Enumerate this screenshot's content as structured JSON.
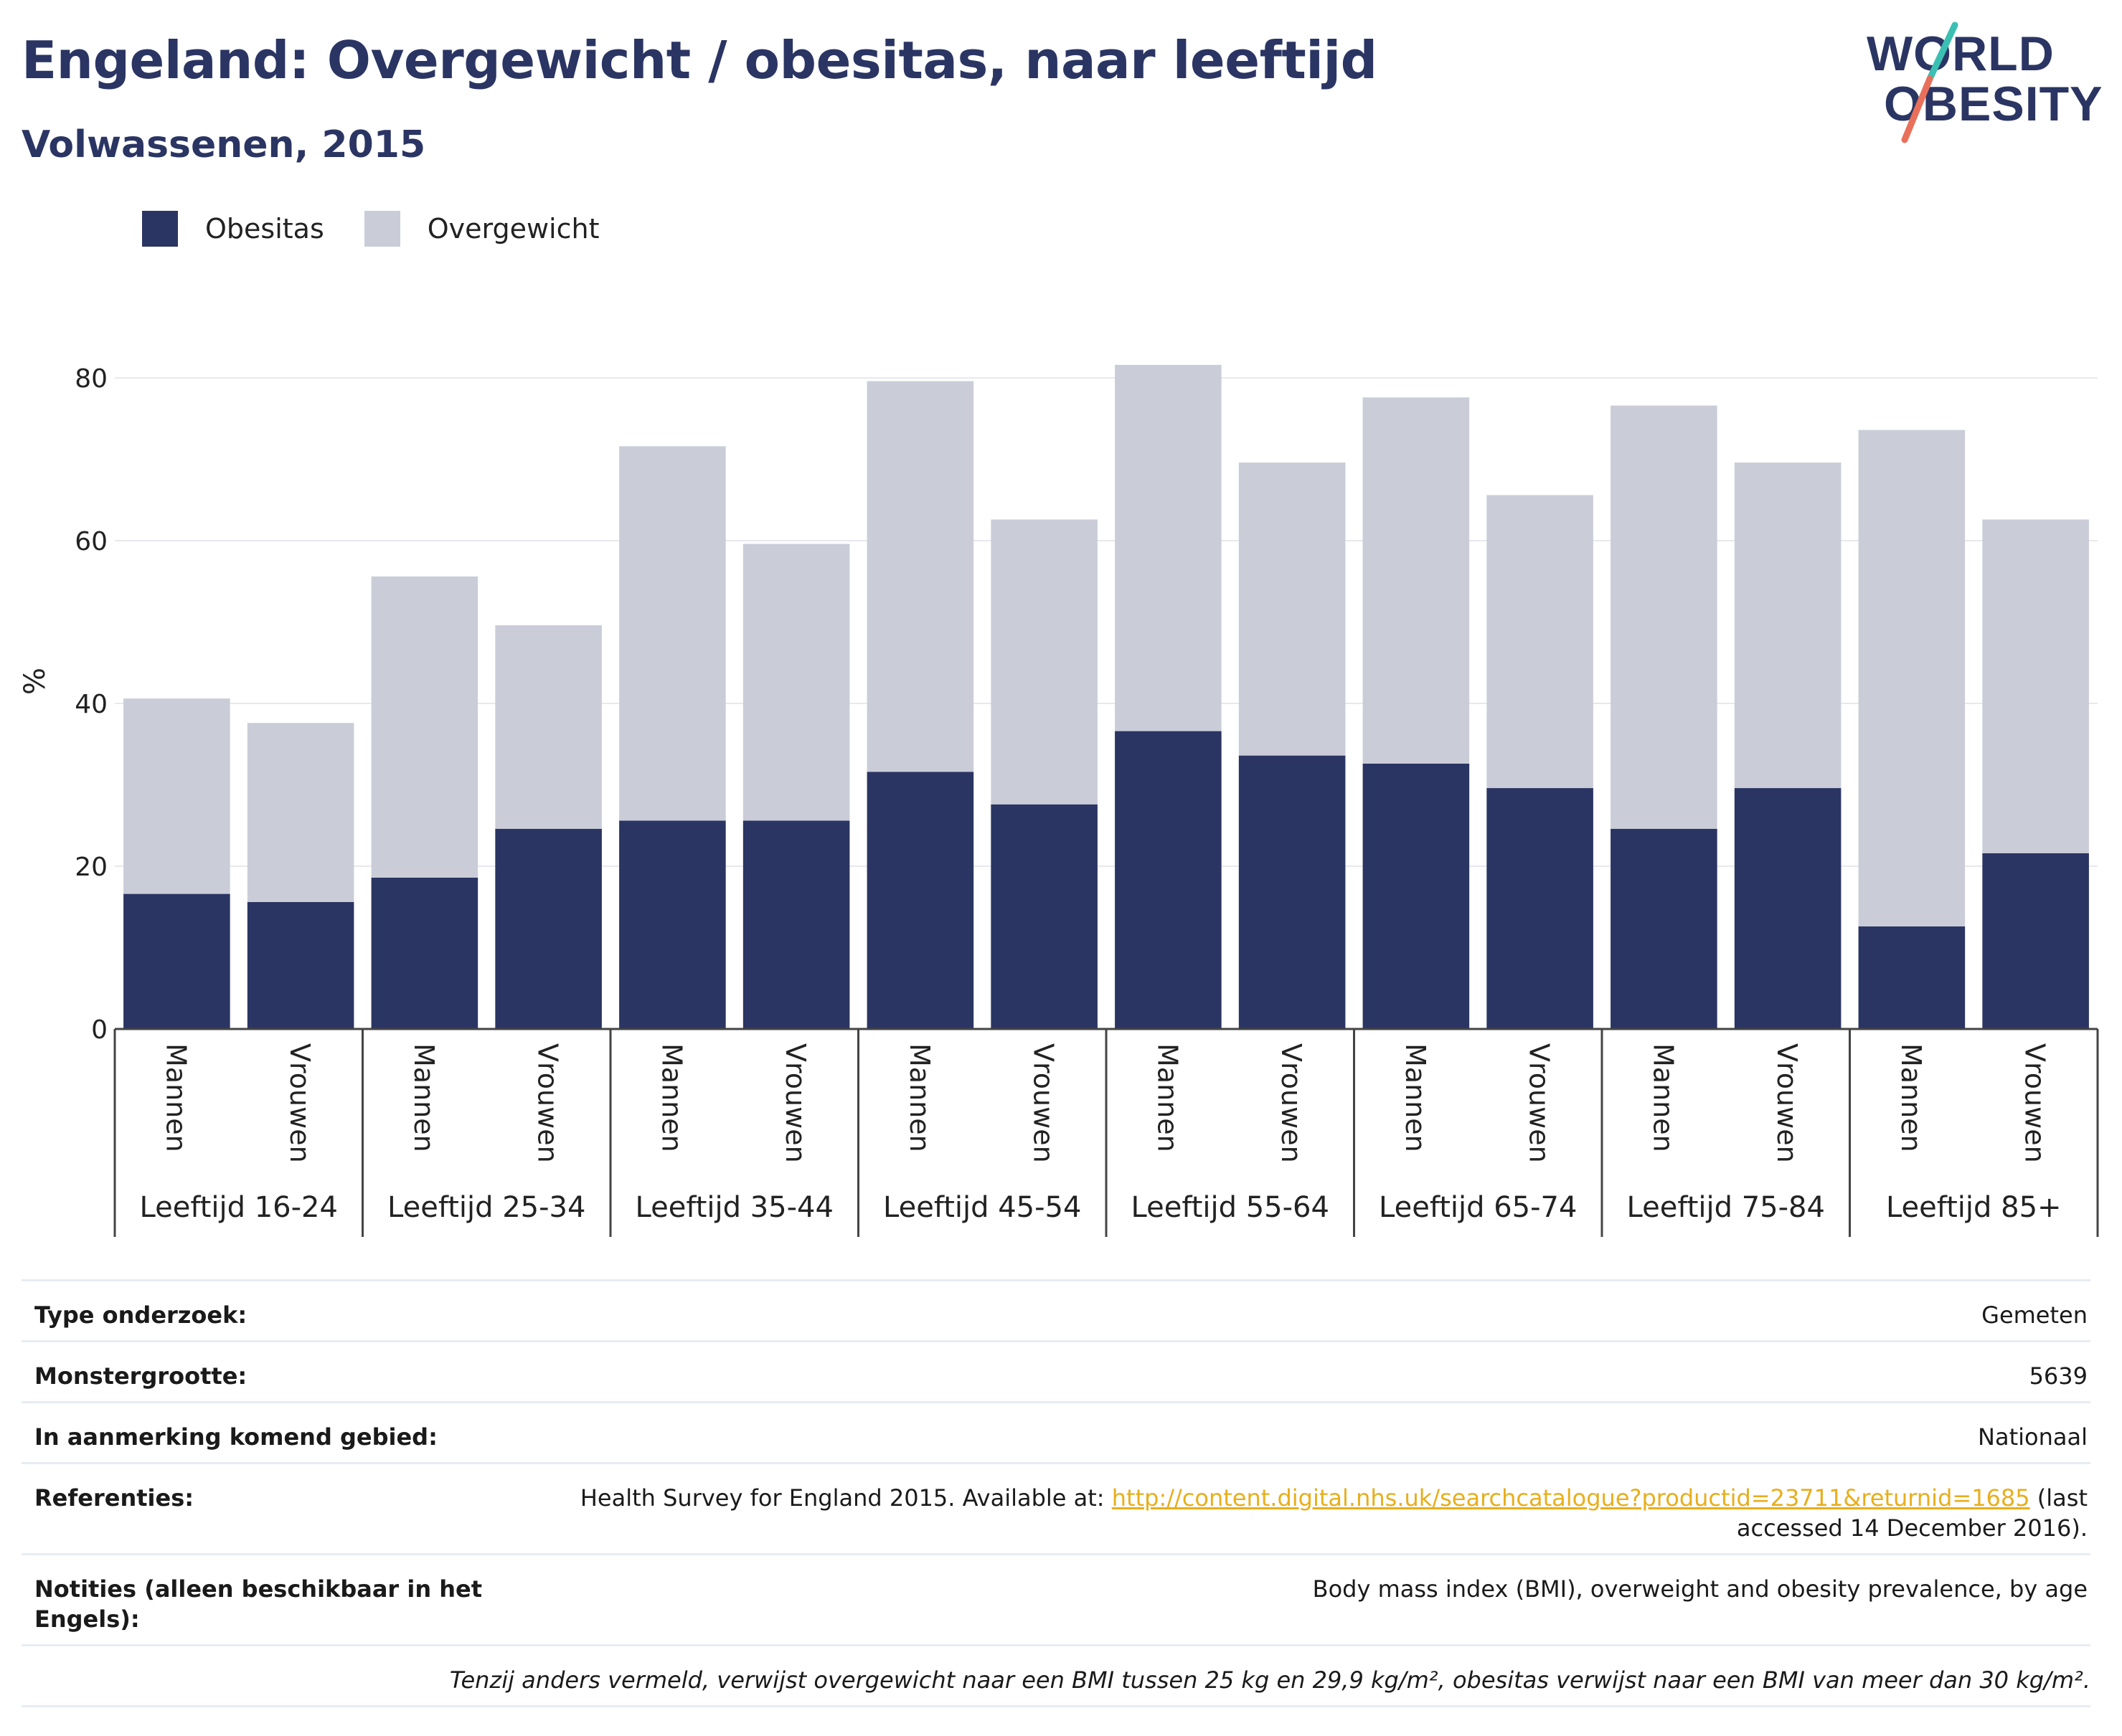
{
  "header": {
    "title": "Engeland: Overgewicht / obesitas, naar leeftijd",
    "subtitle": "Volwassenen, 2015"
  },
  "logo": {
    "line1": "WORLD",
    "line2": "OBESITY",
    "colors": {
      "text": "#2a3563",
      "stroke_top": "#3bbfb3",
      "stroke_bottom": "#e8705a"
    }
  },
  "legend": {
    "items": [
      {
        "label": "Obesitas",
        "color": "#2a3563"
      },
      {
        "label": "Overgewicht",
        "color": "#cacdd8"
      }
    ]
  },
  "chart_data": {
    "type": "bar",
    "stacked": true,
    "ylabel": "%",
    "ylim": [
      0,
      82
    ],
    "yticks": [
      0,
      20,
      40,
      60,
      80
    ],
    "grid": true,
    "legend_position": "top-left",
    "groups": [
      "Leeftijd 16-24",
      "Leeftijd 25-34",
      "Leeftijd 35-44",
      "Leeftijd 45-54",
      "Leeftijd 55-64",
      "Leeftijd 65-74",
      "Leeftijd 75-84",
      "Leeftijd 85+"
    ],
    "subcategories": [
      "Mannen",
      "Vrouwen"
    ],
    "series": [
      {
        "name": "Obesitas",
        "color": "#2a3563",
        "values": [
          16.6,
          15.6,
          18.6,
          24.6,
          25.6,
          25.6,
          31.6,
          27.6,
          36.6,
          33.6,
          32.6,
          29.6,
          24.6,
          29.6,
          12.6,
          21.6
        ]
      },
      {
        "name": "Overgewicht",
        "color": "#cacdd8",
        "values": [
          24,
          22,
          37,
          25,
          46,
          34,
          48,
          35,
          45,
          36,
          45,
          36,
          52,
          40,
          61,
          41
        ]
      }
    ]
  },
  "meta": {
    "rows": [
      {
        "label": "Type onderzoek:",
        "value": "Gemeten"
      },
      {
        "label": "Monstergrootte:",
        "value": "5639"
      },
      {
        "label": "In aanmerking komend gebied:",
        "value": "Nationaal"
      }
    ],
    "references": {
      "label": "Referenties:",
      "text_before": "Health Survey for England 2015. Available at: ",
      "link": "http://content.digital.nhs.uk/searchcatalogue?productid=23711&returnid=1685",
      "text_after": " (last accessed 14 December 2016)."
    },
    "notes": {
      "label": "Notities (alleen beschikbaar in het Engels):",
      "value": "Body mass index (BMI), overweight and obesity prevalence, by age"
    },
    "footnote": "Tenzij anders vermeld, verwijst overgewicht naar een BMI tussen 25 kg en 29,9 kg/m², obesitas verwijst naar een BMI van meer dan 30 kg/m²."
  }
}
